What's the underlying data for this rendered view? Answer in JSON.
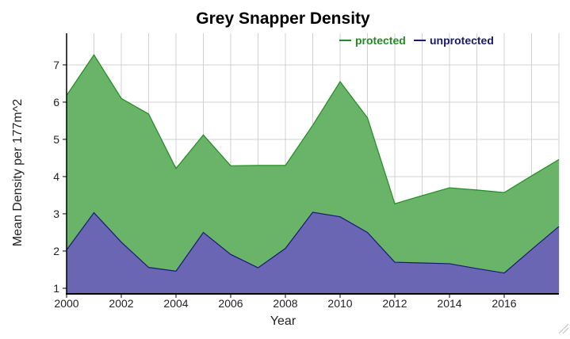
{
  "chart_data": {
    "type": "area",
    "title": "Grey Snapper Density",
    "xlabel": "Year",
    "ylabel": "Mean Density per 177m^2",
    "x": [
      2000,
      2001,
      2002,
      2003,
      2004,
      2005,
      2006,
      2007,
      2008,
      2009,
      2010,
      2011,
      2012,
      2013,
      2014,
      2015,
      2016,
      2017,
      2018
    ],
    "series": [
      {
        "name": "protected",
        "color": "#228b22",
        "fill": "#6ab46a",
        "values": [
          6.18,
          7.27,
          6.1,
          5.68,
          4.22,
          5.12,
          4.29,
          4.3,
          4.3,
          5.38,
          6.55,
          5.58,
          3.27,
          3.49,
          3.7,
          3.64,
          3.57,
          4.02,
          4.46
        ]
      },
      {
        "name": "unprotected",
        "color": "#191970",
        "fill": "#6a66b4",
        "values": [
          2.03,
          3.03,
          2.24,
          1.56,
          1.46,
          2.5,
          1.91,
          1.55,
          2.07,
          3.04,
          2.92,
          2.5,
          1.7,
          1.68,
          1.66,
          1.53,
          1.41,
          2.04,
          2.66
        ]
      }
    ],
    "xticks": [
      "2000",
      "2002",
      "2004",
      "2006",
      "2008",
      "2010",
      "2012",
      "2014",
      "2016"
    ],
    "yticks": [
      "1",
      "2",
      "3",
      "4",
      "5",
      "6",
      "7"
    ],
    "xlim": [
      2000,
      2018
    ],
    "ylim": [
      0.85,
      7.85
    ],
    "grid": true,
    "legend": "top-right"
  }
}
